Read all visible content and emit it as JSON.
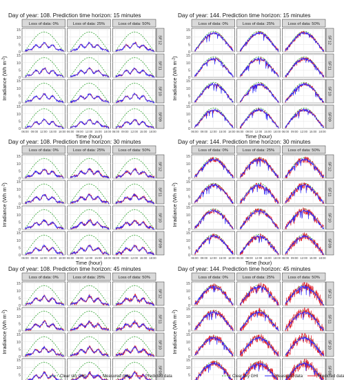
{
  "chart_data": {
    "type": "line",
    "layout": {
      "columns": [
        "Day of year: 108",
        "Day of year: 144"
      ],
      "facet_columns": [
        "Loss of data: 0%",
        "Loss of data: 25%",
        "Loss of data: 50%"
      ],
      "facet_rows": [
        "SF12",
        "SF11",
        "SF10",
        "SF09"
      ]
    },
    "x_tick_labels": [
      "06:00",
      "09:00",
      "12:00",
      "15:00",
      "18:00"
    ],
    "y_tick_labels": [
      "0",
      "5",
      "10",
      "15"
    ],
    "xlim": [
      5,
      19
    ],
    "ylim": [
      0,
      16
    ],
    "ylabel": "Irradiance (Wh m",
    "ylabel_sup": "-2",
    "ylabel_tail": ")",
    "xlabel": "Time (hour)",
    "legend": {
      "placement": "bottom",
      "entries": [
        {
          "name": "Clear sky GHI",
          "color": "#2ca02c",
          "dash": "dashed"
        },
        {
          "name": "Measured data",
          "color": "#2a2aff",
          "dash": "solid"
        },
        {
          "name": "Predicted data",
          "color": "#e0202a",
          "dash": "solid"
        }
      ]
    },
    "panels": [
      {
        "title": "Day of year: 108. Prediction time horizon: 15 minutes",
        "day": 108,
        "horizon": 15,
        "clear_sky_peak": 13.5,
        "measured_peak": 5
      },
      {
        "title": "Day of year: 144. Prediction time horizon: 15 minutes",
        "day": 144,
        "horizon": 15,
        "clear_sky_peak": 14,
        "measured_peak": 13
      },
      {
        "title": "Day of year: 108. Prediction time horizon: 30 minutes",
        "day": 108,
        "horizon": 30,
        "clear_sky_peak": 13.5,
        "measured_peak": 5
      },
      {
        "title": "Day of year: 144. Prediction time horizon: 30 minutes",
        "day": 144,
        "horizon": 30,
        "clear_sky_peak": 14,
        "measured_peak": 13
      },
      {
        "title": "Day of year: 108. Prediction time horizon: 45 minutes",
        "day": 108,
        "horizon": 45,
        "clear_sky_peak": 13.5,
        "measured_peak": 5
      },
      {
        "title": "Day of year: 144. Prediction time horizon: 45 minutes",
        "day": 144,
        "horizon": 45,
        "clear_sky_peak": 14,
        "measured_peak": 13
      }
    ]
  }
}
